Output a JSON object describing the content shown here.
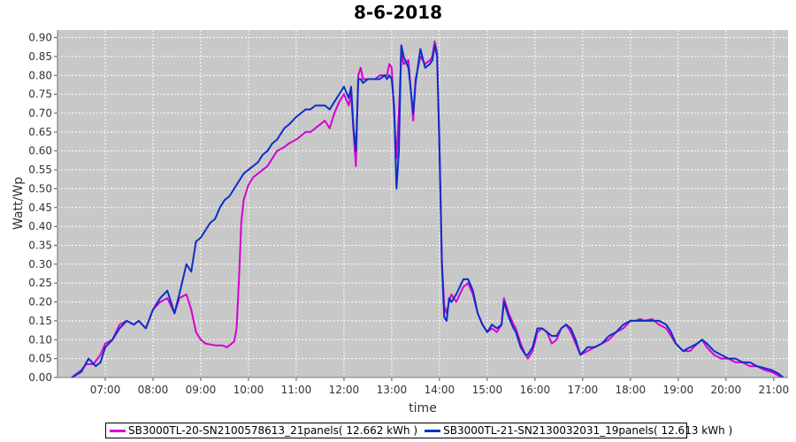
{
  "colors": {
    "plot_bg": "#c8c8c8",
    "grid": "#ffffff",
    "series1": "#d400d4",
    "series2": "#0a2fc8"
  },
  "chart_data": {
    "type": "line",
    "title": "8-6-2018",
    "xlabel": "time",
    "ylabel": "Watt/Wp",
    "xlim": [
      6.0,
      21.3
    ],
    "ylim": [
      0.0,
      0.92
    ],
    "x_ticks": [
      "07:00",
      "08:00",
      "09:00",
      "10:00",
      "11:00",
      "12:00",
      "13:00",
      "14:00",
      "15:00",
      "16:00",
      "17:00",
      "18:00",
      "19:00",
      "20:00",
      "21:00"
    ],
    "x_tick_values": [
      7,
      8,
      9,
      10,
      11,
      12,
      13,
      14,
      15,
      16,
      17,
      18,
      19,
      20,
      21
    ],
    "y_ticks": [
      "0.00",
      "0.05",
      "0.10",
      "0.15",
      "0.20",
      "0.25",
      "0.30",
      "0.35",
      "0.40",
      "0.45",
      "0.50",
      "0.55",
      "0.60",
      "0.65",
      "0.70",
      "0.75",
      "0.80",
      "0.85",
      "0.90"
    ],
    "y_tick_values": [
      0,
      0.05,
      0.1,
      0.15,
      0.2,
      0.25,
      0.3,
      0.35,
      0.4,
      0.45,
      0.5,
      0.55,
      0.6,
      0.65,
      0.7,
      0.75,
      0.8,
      0.85,
      0.9
    ],
    "grid": true,
    "legend_position": "bottom",
    "series": [
      {
        "name": "SB3000TL-20-SN2100578613_21panels( 12.662 kWh )",
        "color": "#d400d4",
        "points": [
          [
            6.3,
            0.0
          ],
          [
            6.5,
            0.02
          ],
          [
            6.6,
            0.035
          ],
          [
            6.75,
            0.035
          ],
          [
            6.9,
            0.06
          ],
          [
            7.0,
            0.09
          ],
          [
            7.15,
            0.1
          ],
          [
            7.3,
            0.14
          ],
          [
            7.45,
            0.15
          ],
          [
            7.6,
            0.14
          ],
          [
            7.7,
            0.15
          ],
          [
            7.85,
            0.13
          ],
          [
            8.0,
            0.18
          ],
          [
            8.15,
            0.2
          ],
          [
            8.3,
            0.21
          ],
          [
            8.45,
            0.17
          ],
          [
            8.55,
            0.21
          ],
          [
            8.7,
            0.22
          ],
          [
            8.8,
            0.18
          ],
          [
            8.9,
            0.12
          ],
          [
            9.0,
            0.1
          ],
          [
            9.1,
            0.09
          ],
          [
            9.3,
            0.085
          ],
          [
            9.45,
            0.085
          ],
          [
            9.55,
            0.08
          ],
          [
            9.7,
            0.095
          ],
          [
            9.75,
            0.13
          ],
          [
            9.8,
            0.26
          ],
          [
            9.85,
            0.41
          ],
          [
            9.9,
            0.47
          ],
          [
            10.0,
            0.51
          ],
          [
            10.1,
            0.53
          ],
          [
            10.2,
            0.54
          ],
          [
            10.3,
            0.55
          ],
          [
            10.4,
            0.56
          ],
          [
            10.5,
            0.58
          ],
          [
            10.6,
            0.6
          ],
          [
            10.75,
            0.61
          ],
          [
            10.85,
            0.62
          ],
          [
            11.0,
            0.63
          ],
          [
            11.1,
            0.64
          ],
          [
            11.2,
            0.65
          ],
          [
            11.3,
            0.65
          ],
          [
            11.4,
            0.66
          ],
          [
            11.5,
            0.67
          ],
          [
            11.6,
            0.68
          ],
          [
            11.7,
            0.66
          ],
          [
            11.8,
            0.7
          ],
          [
            11.9,
            0.73
          ],
          [
            12.0,
            0.75
          ],
          [
            12.1,
            0.72
          ],
          [
            12.15,
            0.75
          ],
          [
            12.2,
            0.65
          ],
          [
            12.25,
            0.56
          ],
          [
            12.3,
            0.8
          ],
          [
            12.35,
            0.82
          ],
          [
            12.4,
            0.79
          ],
          [
            12.5,
            0.79
          ],
          [
            12.65,
            0.79
          ],
          [
            12.75,
            0.8
          ],
          [
            12.85,
            0.8
          ],
          [
            12.9,
            0.8
          ],
          [
            12.95,
            0.83
          ],
          [
            13.0,
            0.82
          ],
          [
            13.05,
            0.7
          ],
          [
            13.1,
            0.58
          ],
          [
            13.15,
            0.7
          ],
          [
            13.2,
            0.86
          ],
          [
            13.25,
            0.83
          ],
          [
            13.35,
            0.84
          ],
          [
            13.45,
            0.68
          ],
          [
            13.5,
            0.79
          ],
          [
            13.6,
            0.85
          ],
          [
            13.7,
            0.83
          ],
          [
            13.8,
            0.84
          ],
          [
            13.85,
            0.85
          ],
          [
            13.9,
            0.89
          ],
          [
            13.95,
            0.86
          ],
          [
            14.0,
            0.62
          ],
          [
            14.05,
            0.31
          ],
          [
            14.1,
            0.19
          ],
          [
            14.15,
            0.17
          ],
          [
            14.2,
            0.2
          ],
          [
            14.25,
            0.22
          ],
          [
            14.35,
            0.2
          ],
          [
            14.5,
            0.24
          ],
          [
            14.6,
            0.25
          ],
          [
            14.7,
            0.22
          ],
          [
            14.8,
            0.17
          ],
          [
            14.9,
            0.14
          ],
          [
            15.0,
            0.12
          ],
          [
            15.1,
            0.13
          ],
          [
            15.2,
            0.12
          ],
          [
            15.3,
            0.14
          ],
          [
            15.35,
            0.21
          ],
          [
            15.45,
            0.17
          ],
          [
            15.55,
            0.14
          ],
          [
            15.6,
            0.13
          ],
          [
            15.7,
            0.09
          ],
          [
            15.8,
            0.06
          ],
          [
            15.85,
            0.05
          ],
          [
            15.95,
            0.07
          ],
          [
            16.05,
            0.12
          ],
          [
            16.15,
            0.13
          ],
          [
            16.25,
            0.12
          ],
          [
            16.35,
            0.09
          ],
          [
            16.45,
            0.1
          ],
          [
            16.55,
            0.13
          ],
          [
            16.65,
            0.14
          ],
          [
            16.75,
            0.12
          ],
          [
            16.85,
            0.09
          ],
          [
            16.95,
            0.06
          ],
          [
            17.1,
            0.07
          ],
          [
            17.25,
            0.08
          ],
          [
            17.4,
            0.09
          ],
          [
            17.55,
            0.1
          ],
          [
            17.7,
            0.12
          ],
          [
            17.85,
            0.13
          ],
          [
            18.0,
            0.15
          ],
          [
            18.1,
            0.15
          ],
          [
            18.2,
            0.155
          ],
          [
            18.3,
            0.15
          ],
          [
            18.45,
            0.155
          ],
          [
            18.6,
            0.14
          ],
          [
            18.75,
            0.13
          ],
          [
            18.85,
            0.11
          ],
          [
            18.95,
            0.09
          ],
          [
            19.1,
            0.07
          ],
          [
            19.25,
            0.07
          ],
          [
            19.4,
            0.09
          ],
          [
            19.5,
            0.1
          ],
          [
            19.6,
            0.08
          ],
          [
            19.75,
            0.06
          ],
          [
            19.9,
            0.05
          ],
          [
            20.05,
            0.05
          ],
          [
            20.2,
            0.04
          ],
          [
            20.35,
            0.04
          ],
          [
            20.5,
            0.03
          ],
          [
            20.65,
            0.03
          ],
          [
            20.8,
            0.02
          ],
          [
            20.95,
            0.015
          ],
          [
            21.1,
            0.005
          ],
          [
            21.15,
            0.0
          ]
        ]
      },
      {
        "name": "SB3000TL-21-SN2130032031_19panels( 12.613 kWh )",
        "color": "#0a2fc8",
        "points": [
          [
            6.3,
            0.0
          ],
          [
            6.5,
            0.015
          ],
          [
            6.65,
            0.05
          ],
          [
            6.8,
            0.03
          ],
          [
            6.9,
            0.04
          ],
          [
            7.0,
            0.08
          ],
          [
            7.15,
            0.1
          ],
          [
            7.3,
            0.13
          ],
          [
            7.45,
            0.15
          ],
          [
            7.6,
            0.14
          ],
          [
            7.7,
            0.15
          ],
          [
            7.85,
            0.13
          ],
          [
            8.0,
            0.18
          ],
          [
            8.15,
            0.21
          ],
          [
            8.3,
            0.23
          ],
          [
            8.45,
            0.17
          ],
          [
            8.55,
            0.22
          ],
          [
            8.7,
            0.3
          ],
          [
            8.8,
            0.28
          ],
          [
            8.9,
            0.36
          ],
          [
            9.0,
            0.37
          ],
          [
            9.1,
            0.39
          ],
          [
            9.2,
            0.41
          ],
          [
            9.3,
            0.42
          ],
          [
            9.4,
            0.45
          ],
          [
            9.5,
            0.47
          ],
          [
            9.6,
            0.48
          ],
          [
            9.7,
            0.5
          ],
          [
            9.8,
            0.52
          ],
          [
            9.9,
            0.54
          ],
          [
            10.0,
            0.55
          ],
          [
            10.1,
            0.56
          ],
          [
            10.2,
            0.57
          ],
          [
            10.3,
            0.59
          ],
          [
            10.4,
            0.6
          ],
          [
            10.5,
            0.62
          ],
          [
            10.6,
            0.63
          ],
          [
            10.75,
            0.66
          ],
          [
            10.85,
            0.67
          ],
          [
            11.0,
            0.69
          ],
          [
            11.1,
            0.7
          ],
          [
            11.2,
            0.71
          ],
          [
            11.3,
            0.71
          ],
          [
            11.4,
            0.72
          ],
          [
            11.5,
            0.72
          ],
          [
            11.6,
            0.72
          ],
          [
            11.7,
            0.71
          ],
          [
            11.8,
            0.73
          ],
          [
            11.9,
            0.75
          ],
          [
            12.0,
            0.77
          ],
          [
            12.1,
            0.74
          ],
          [
            12.15,
            0.77
          ],
          [
            12.2,
            0.66
          ],
          [
            12.25,
            0.6
          ],
          [
            12.3,
            0.79
          ],
          [
            12.35,
            0.79
          ],
          [
            12.4,
            0.78
          ],
          [
            12.5,
            0.79
          ],
          [
            12.65,
            0.79
          ],
          [
            12.75,
            0.79
          ],
          [
            12.85,
            0.8
          ],
          [
            12.9,
            0.79
          ],
          [
            12.95,
            0.8
          ],
          [
            13.0,
            0.79
          ],
          [
            13.05,
            0.72
          ],
          [
            13.1,
            0.5
          ],
          [
            13.15,
            0.6
          ],
          [
            13.2,
            0.88
          ],
          [
            13.25,
            0.85
          ],
          [
            13.35,
            0.82
          ],
          [
            13.45,
            0.7
          ],
          [
            13.5,
            0.78
          ],
          [
            13.6,
            0.87
          ],
          [
            13.7,
            0.82
          ],
          [
            13.8,
            0.83
          ],
          [
            13.85,
            0.84
          ],
          [
            13.9,
            0.88
          ],
          [
            13.95,
            0.85
          ],
          [
            14.0,
            0.6
          ],
          [
            14.05,
            0.3
          ],
          [
            14.1,
            0.16
          ],
          [
            14.15,
            0.15
          ],
          [
            14.2,
            0.21
          ],
          [
            14.25,
            0.2
          ],
          [
            14.35,
            0.22
          ],
          [
            14.5,
            0.26
          ],
          [
            14.6,
            0.26
          ],
          [
            14.7,
            0.23
          ],
          [
            14.8,
            0.17
          ],
          [
            14.9,
            0.14
          ],
          [
            15.0,
            0.12
          ],
          [
            15.1,
            0.14
          ],
          [
            15.2,
            0.13
          ],
          [
            15.3,
            0.14
          ],
          [
            15.35,
            0.2
          ],
          [
            15.45,
            0.16
          ],
          [
            15.55,
            0.13
          ],
          [
            15.6,
            0.12
          ],
          [
            15.7,
            0.08
          ],
          [
            15.8,
            0.06
          ],
          [
            15.85,
            0.06
          ],
          [
            15.95,
            0.08
          ],
          [
            16.05,
            0.13
          ],
          [
            16.15,
            0.13
          ],
          [
            16.25,
            0.12
          ],
          [
            16.35,
            0.11
          ],
          [
            16.45,
            0.11
          ],
          [
            16.55,
            0.13
          ],
          [
            16.65,
            0.14
          ],
          [
            16.75,
            0.13
          ],
          [
            16.85,
            0.1
          ],
          [
            16.95,
            0.06
          ],
          [
            17.1,
            0.08
          ],
          [
            17.25,
            0.08
          ],
          [
            17.4,
            0.09
          ],
          [
            17.55,
            0.11
          ],
          [
            17.7,
            0.12
          ],
          [
            17.85,
            0.14
          ],
          [
            18.0,
            0.15
          ],
          [
            18.1,
            0.15
          ],
          [
            18.2,
            0.15
          ],
          [
            18.3,
            0.15
          ],
          [
            18.45,
            0.15
          ],
          [
            18.6,
            0.15
          ],
          [
            18.75,
            0.14
          ],
          [
            18.85,
            0.12
          ],
          [
            18.95,
            0.09
          ],
          [
            19.1,
            0.07
          ],
          [
            19.25,
            0.08
          ],
          [
            19.4,
            0.09
          ],
          [
            19.5,
            0.1
          ],
          [
            19.6,
            0.09
          ],
          [
            19.75,
            0.07
          ],
          [
            19.9,
            0.06
          ],
          [
            20.05,
            0.05
          ],
          [
            20.2,
            0.05
          ],
          [
            20.35,
            0.04
          ],
          [
            20.5,
            0.04
          ],
          [
            20.65,
            0.03
          ],
          [
            20.8,
            0.025
          ],
          [
            20.95,
            0.02
          ],
          [
            21.1,
            0.01
          ],
          [
            21.2,
            0.0
          ]
        ]
      }
    ]
  }
}
